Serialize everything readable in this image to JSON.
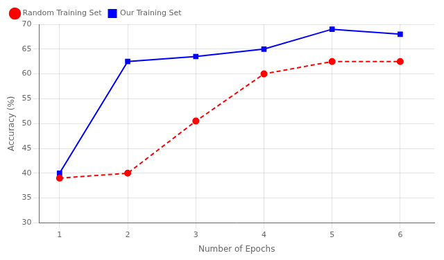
{
  "chart_data": {
    "type": "line",
    "x": [
      1,
      2,
      3,
      4,
      5,
      6
    ],
    "series": [
      {
        "name": "Random Training Set",
        "color": "#ff0000",
        "values": [
          39.0,
          40.0,
          50.5,
          60.0,
          62.5,
          62.5
        ],
        "marker": "circle",
        "line_style": "dashed"
      },
      {
        "name": "Our Training Set",
        "color": "#0000ff",
        "values": [
          40.0,
          62.5,
          63.5,
          65.0,
          69.0,
          68.0
        ],
        "marker": "square",
        "line_style": "solid"
      }
    ],
    "xlabel": "Number of Epochs",
    "ylabel": "Accuracy (%)",
    "xlim": [
      0.7,
      6.5
    ],
    "xticks": [
      1,
      2,
      3,
      4,
      5,
      6
    ],
    "ylim": [
      30,
      70
    ],
    "yticks": [
      30,
      35,
      40,
      45,
      50,
      55,
      60,
      65,
      70
    ],
    "grid": true,
    "legend": "upper left"
  }
}
